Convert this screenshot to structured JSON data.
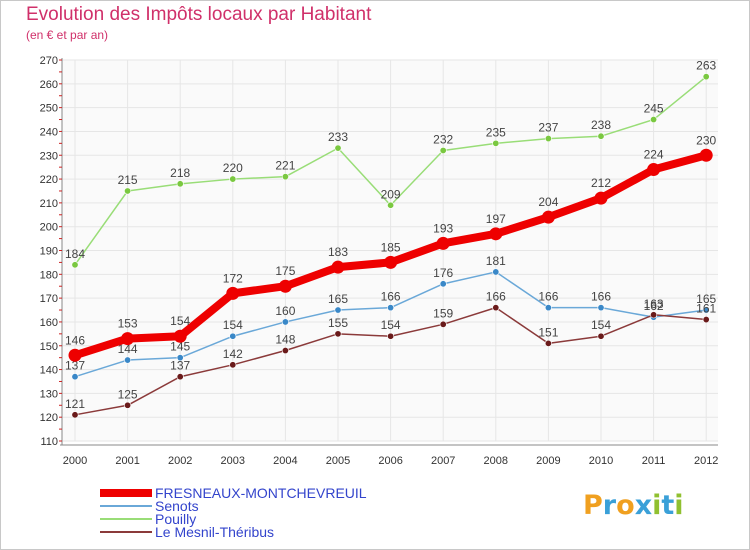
{
  "header": {
    "title": "Evolution des Impôts locaux par Habitant",
    "subtitle": "(en € et par an)"
  },
  "logo": {
    "letters": [
      "P",
      "r",
      "o",
      "x",
      "i",
      "t",
      "i"
    ],
    "colors": [
      "#f0a020",
      "#3aa0d8",
      "#f0a020",
      "#3aa0d8",
      "#90c030",
      "#3aa0d8",
      "#90c030"
    ]
  },
  "chart_data": {
    "type": "line",
    "title": "Evolution des Impôts locaux par Habitant",
    "subtitle": "(en € et par an)",
    "x": [
      "2000",
      "2001",
      "2002",
      "2003",
      "2004",
      "2005",
      "2006",
      "2007",
      "2008",
      "2009",
      "2010",
      "2011",
      "2012"
    ],
    "ylim": [
      110,
      270
    ],
    "yticks": [
      110,
      120,
      130,
      140,
      150,
      160,
      170,
      180,
      190,
      200,
      210,
      220,
      230,
      240,
      250,
      260,
      270
    ],
    "grid": true,
    "legend_position": "bottom-left",
    "series": [
      {
        "name": "FRESNEAUX-MONTCHEVREUIL",
        "color": "#ee0000",
        "point_color": "#ee0000",
        "values": [
          146,
          153,
          154,
          172,
          175,
          183,
          185,
          193,
          197,
          204,
          212,
          224,
          230
        ]
      },
      {
        "name": "Senots",
        "color": "#6aa8d8",
        "point_color": "#3a88c8",
        "values": [
          137,
          144,
          145,
          154,
          160,
          165,
          166,
          176,
          181,
          166,
          166,
          162,
          165
        ]
      },
      {
        "name": "Pouilly",
        "color": "#99dd77",
        "point_color": "#7ac840",
        "values": [
          184,
          215,
          218,
          220,
          221,
          233,
          209,
          232,
          235,
          237,
          238,
          245,
          263
        ]
      },
      {
        "name": "Le Mesnil-Théribus",
        "color": "#8b3a3a",
        "point_color": "#6a1a1a",
        "values": [
          121,
          125,
          137,
          142,
          148,
          155,
          154,
          159,
          166,
          151,
          154,
          163,
          161
        ]
      }
    ]
  }
}
